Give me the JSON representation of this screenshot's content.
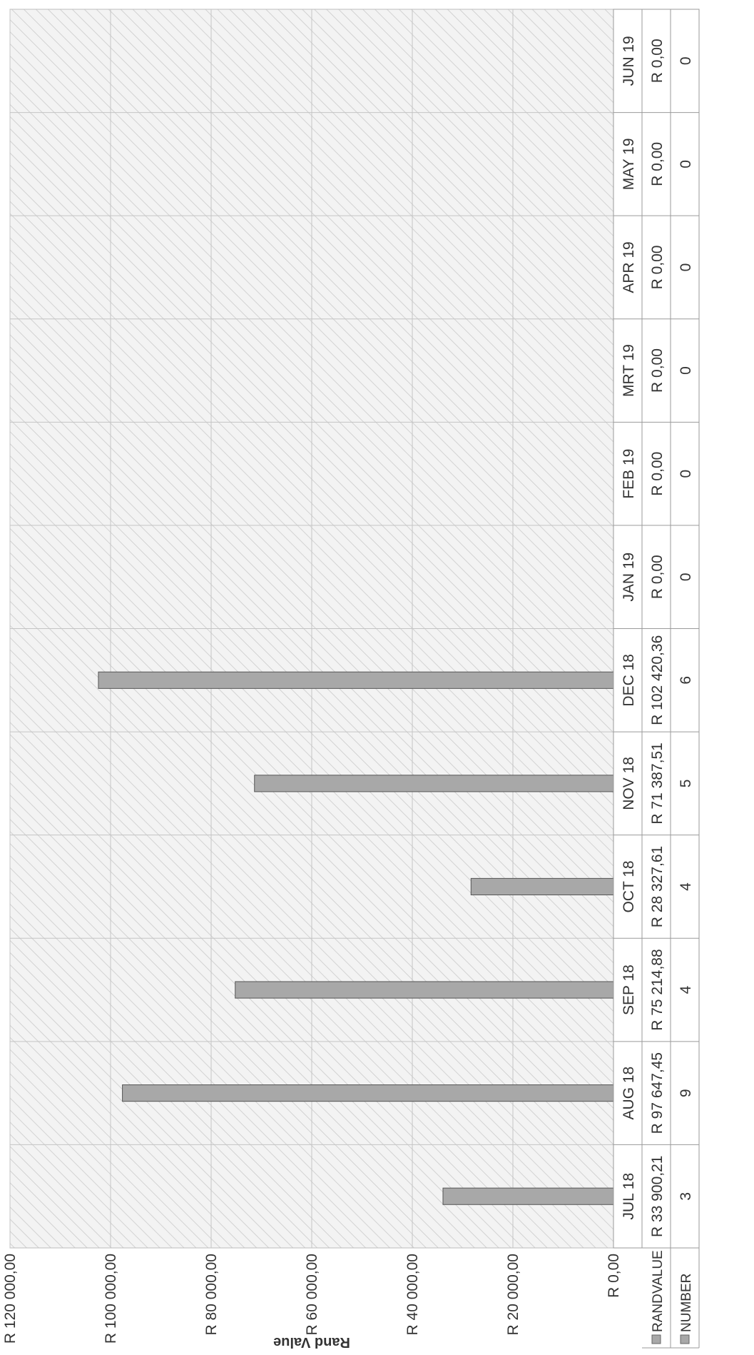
{
  "chart_data": {
    "type": "bar",
    "orientation": "rotated-90-counterclockwise",
    "title": "",
    "xlabel": "",
    "ylabel": "Rand Value",
    "ylim": [
      0,
      120000
    ],
    "yticks": [
      "R 0,00",
      "R 20 000,00",
      "R 40 000,00",
      "R 60 000,00",
      "R 80 000,00",
      "R 100 000,00",
      "R 120 000,00"
    ],
    "grid": true,
    "bar_color": "#a8a8a8",
    "categories": [
      "JUL 18",
      "AUG 18",
      "SEP 18",
      "OCT 18",
      "NOV 18",
      "DEC 18",
      "JAN 19",
      "FEB 19",
      "MRT 19",
      "APR 19",
      "MAY 19",
      "JUN 19"
    ],
    "series": [
      {
        "name": "RANDVALUE",
        "values": [
          33900.21,
          97647.45,
          75214.88,
          28327.61,
          71387.51,
          102420.36,
          0,
          0,
          0,
          0,
          0,
          0
        ],
        "labels": [
          "R 33 900,21",
          "R 97 647,45",
          "R 75 214,88",
          "R 28 327,61",
          "R 71 387,51",
          "R 102 420,36",
          "R 0,00",
          "R 0,00",
          "R 0,00",
          "R 0,00",
          "R 0,00",
          "R 0,00"
        ]
      },
      {
        "name": "NUMBER",
        "values": [
          3,
          9,
          4,
          4,
          5,
          6,
          0,
          0,
          0,
          0,
          0,
          0
        ],
        "labels": [
          "3",
          "9",
          "4",
          "4",
          "5",
          "6",
          "0",
          "0",
          "0",
          "0",
          "0",
          "0"
        ]
      }
    ]
  }
}
